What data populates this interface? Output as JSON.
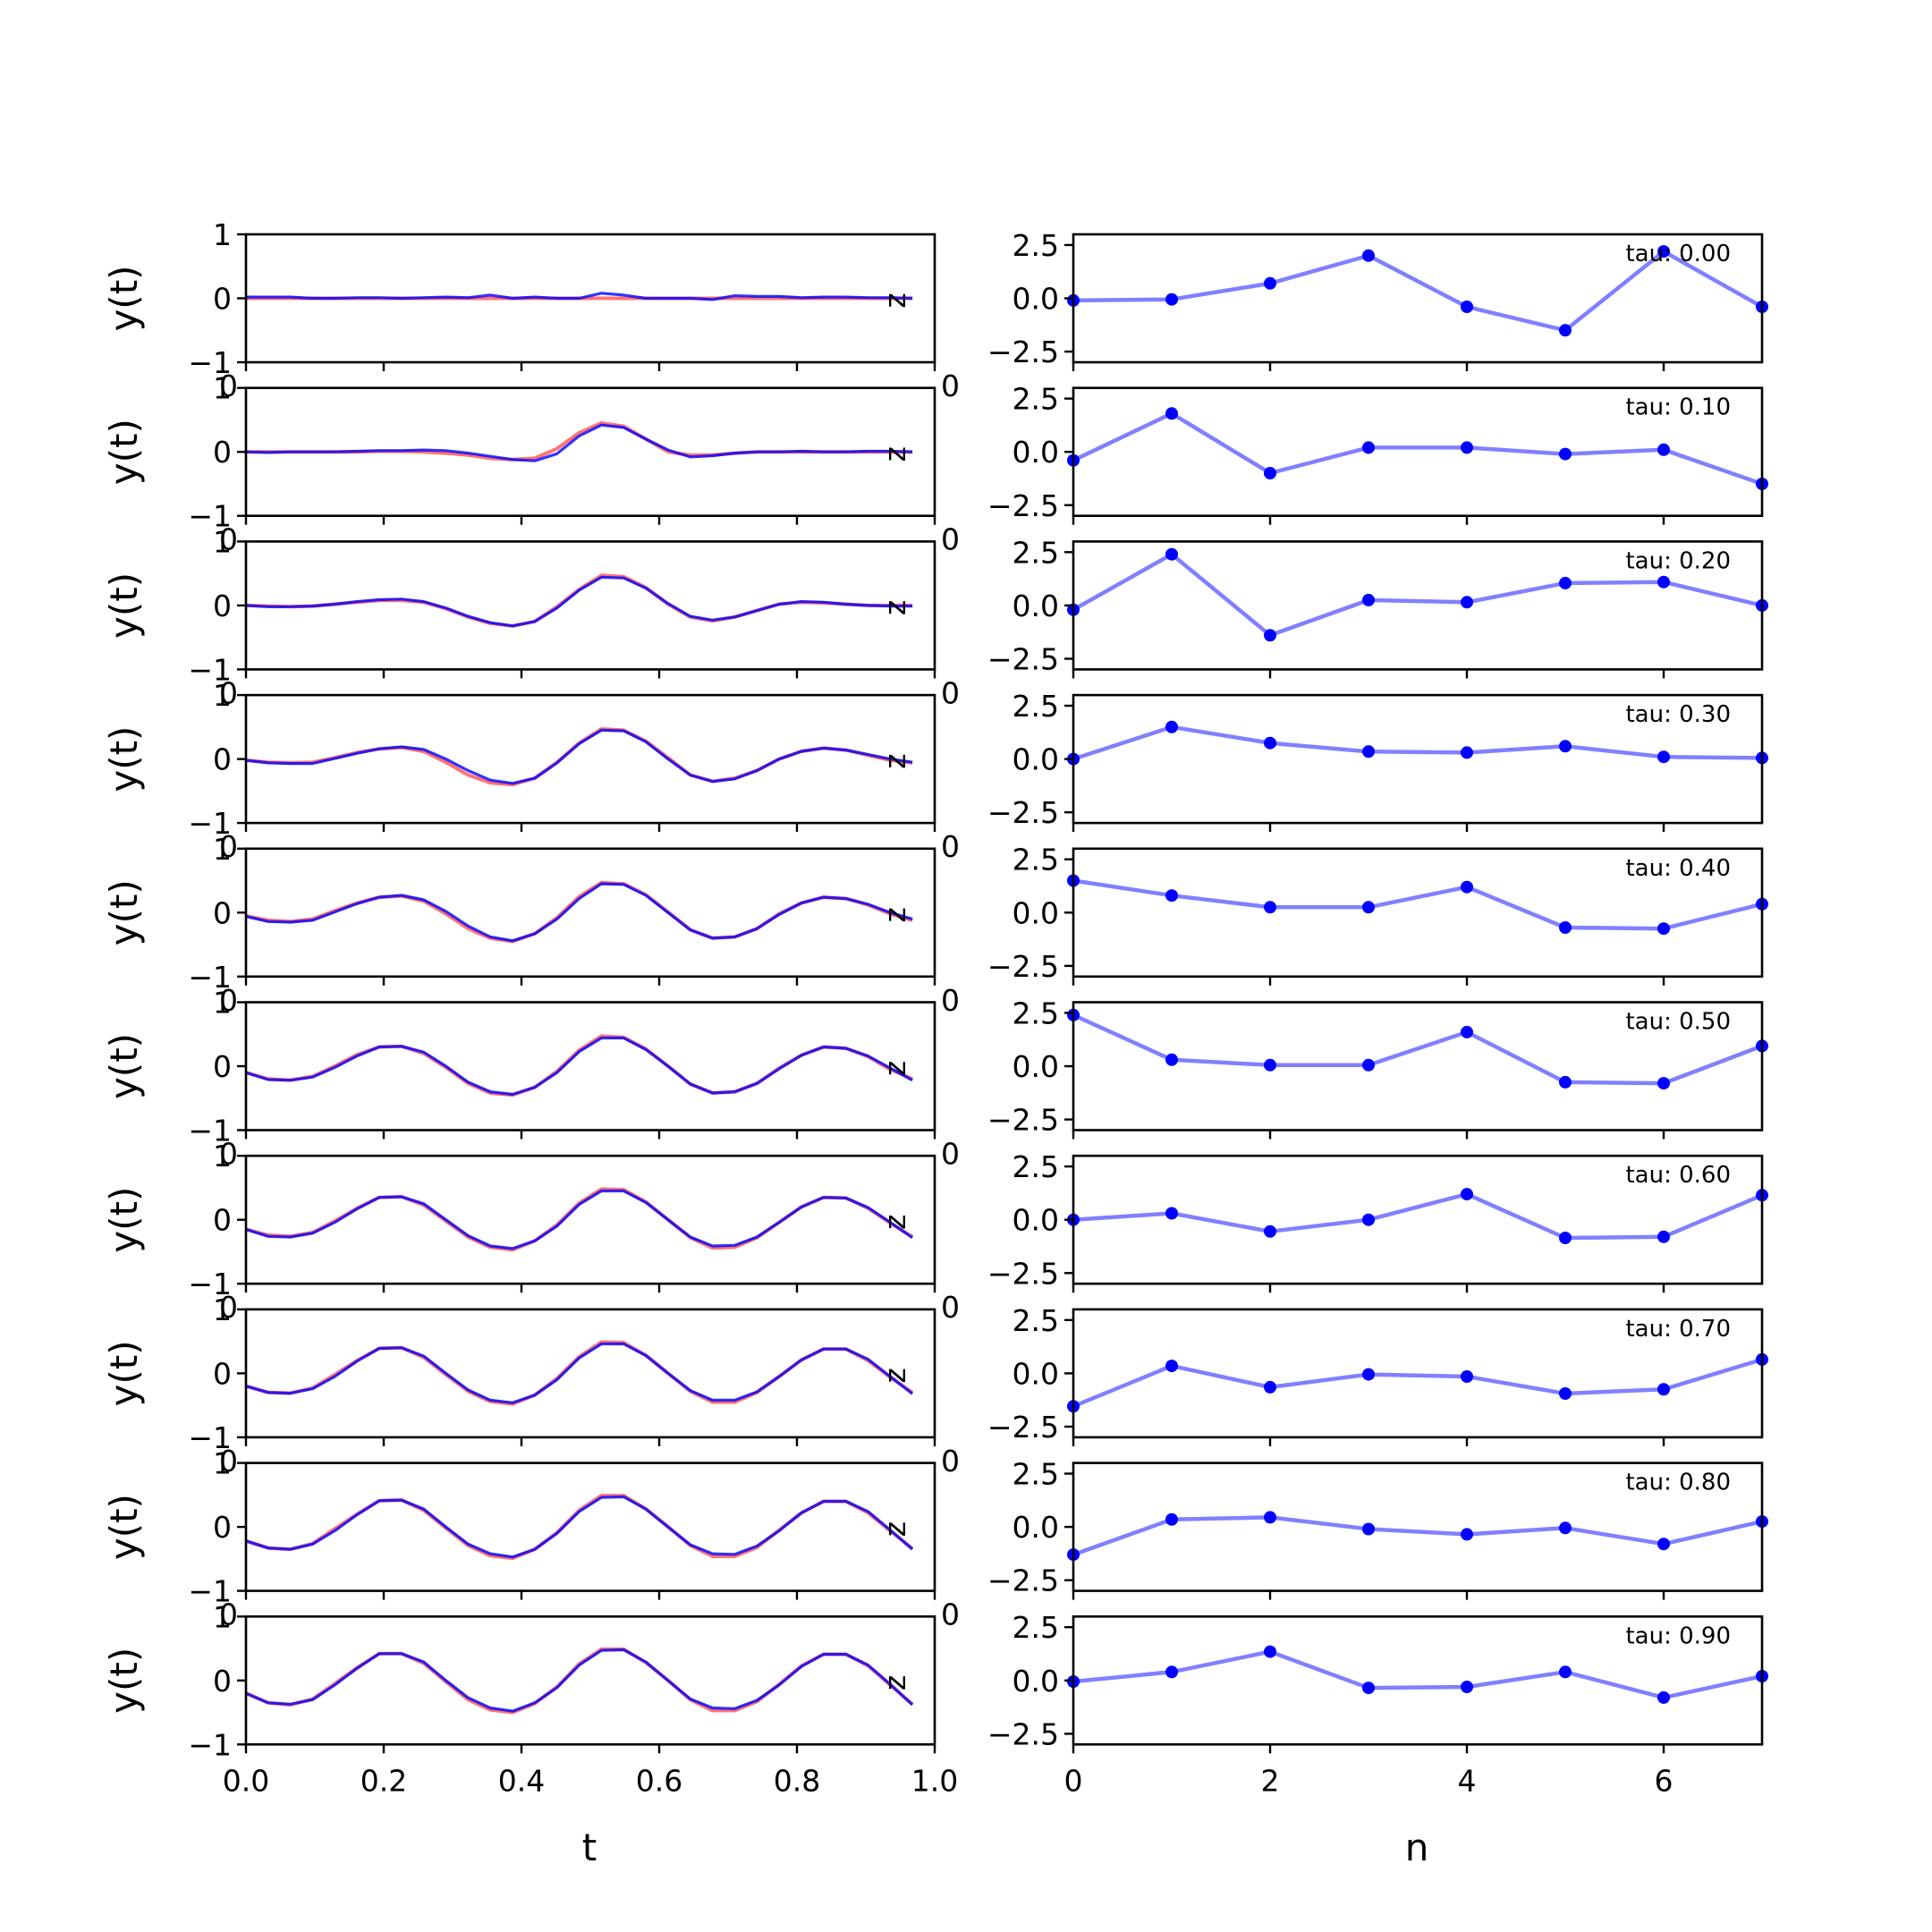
{
  "chart_data": [
    {
      "type": "line",
      "panel": "left-column",
      "xlabel": "t",
      "ylabel": "y(t)",
      "xlim": [
        0.0,
        1.0
      ],
      "ylim": [
        -1,
        1
      ],
      "xticks": [
        "0.0",
        "0.2",
        "0.4",
        "0.6",
        "0.8",
        "1.0"
      ],
      "yticks": [
        "−1",
        "0",
        "1"
      ],
      "overlap_tick_text": "0",
      "side_text": "z",
      "series_colors": {
        "reference": "#ff0000",
        "reconstruction": "#0000ff"
      },
      "t": [
        0.0,
        0.0323,
        0.0645,
        0.0968,
        0.129,
        0.1613,
        0.1935,
        0.2258,
        0.2581,
        0.2903,
        0.3226,
        0.3548,
        0.3871,
        0.4194,
        0.4516,
        0.4839,
        0.5161,
        0.5484,
        0.5806,
        0.6129,
        0.6452,
        0.6774,
        0.7097,
        0.7419,
        0.7742,
        0.8065,
        0.8387,
        0.871,
        0.9032,
        0.9355,
        0.9677
      ],
      "rows": [
        {
          "reference": [
            0.0,
            0.0,
            0.0,
            0.0,
            0.0,
            0.0,
            0.0,
            0.0,
            0.0,
            0.0,
            0.0,
            0.0,
            0.0,
            0.0,
            0.0,
            0.0,
            0.0,
            0.0,
            0.0,
            0.0,
            0.0,
            0.0,
            0.0,
            0.0,
            0.0,
            0.0,
            0.0,
            0.0,
            0.0,
            0.0,
            0.0
          ],
          "reconstruction": [
            0.02,
            0.02,
            0.02,
            0.0,
            0.0,
            0.01,
            0.01,
            0.0,
            0.01,
            0.02,
            0.01,
            0.05,
            0.0,
            0.02,
            0.0,
            0.0,
            0.08,
            0.05,
            0.0,
            0.0,
            0.0,
            -0.02,
            0.04,
            0.03,
            0.03,
            0.01,
            0.02,
            0.02,
            0.01,
            0.01,
            0.0
          ]
        },
        {
          "reference": [
            0.0,
            0.0,
            0.0,
            0.0,
            0.0,
            0.0,
            0.01,
            0.01,
            0.0,
            -0.02,
            -0.05,
            -0.1,
            -0.12,
            -0.1,
            0.05,
            0.3,
            0.45,
            0.4,
            0.2,
            0.0,
            -0.05,
            -0.05,
            -0.02,
            0.0,
            0.0,
            0.0,
            0.0,
            0.0,
            0.0,
            0.0,
            0.0
          ],
          "reconstruction": [
            0.0,
            -0.01,
            0.0,
            0.0,
            0.0,
            0.01,
            0.02,
            0.02,
            0.03,
            0.02,
            -0.02,
            -0.07,
            -0.12,
            -0.14,
            -0.03,
            0.25,
            0.42,
            0.38,
            0.2,
            0.03,
            -0.08,
            -0.06,
            -0.02,
            0.0,
            0.0,
            0.01,
            0.0,
            0.0,
            0.01,
            0.01,
            0.0
          ]
        },
        {
          "reference": [
            0.0,
            -0.01,
            -0.02,
            -0.01,
            0.02,
            0.05,
            0.08,
            0.08,
            0.05,
            -0.05,
            -0.18,
            -0.28,
            -0.32,
            -0.25,
            -0.02,
            0.25,
            0.47,
            0.45,
            0.28,
            0.02,
            -0.18,
            -0.24,
            -0.18,
            -0.08,
            0.02,
            0.05,
            0.04,
            0.02,
            0.0,
            0.0,
            0.0
          ],
          "reconstruction": [
            0.0,
            -0.02,
            -0.02,
            -0.01,
            0.02,
            0.06,
            0.09,
            0.1,
            0.06,
            -0.04,
            -0.17,
            -0.27,
            -0.32,
            -0.25,
            -0.04,
            0.24,
            0.44,
            0.43,
            0.27,
            0.03,
            -0.17,
            -0.23,
            -0.18,
            -0.08,
            0.02,
            0.06,
            0.05,
            0.02,
            0.0,
            -0.01,
            -0.01
          ]
        },
        {
          "reference": [
            -0.02,
            -0.05,
            -0.06,
            -0.05,
            0.02,
            0.1,
            0.16,
            0.18,
            0.12,
            -0.05,
            -0.25,
            -0.37,
            -0.4,
            -0.3,
            -0.05,
            0.25,
            0.47,
            0.45,
            0.28,
            0.02,
            -0.25,
            -0.35,
            -0.3,
            -0.18,
            0.0,
            0.12,
            0.17,
            0.14,
            0.06,
            -0.02,
            -0.06
          ],
          "reconstruction": [
            -0.02,
            -0.06,
            -0.07,
            -0.07,
            0.01,
            0.09,
            0.16,
            0.19,
            0.15,
            0.0,
            -0.18,
            -0.33,
            -0.38,
            -0.3,
            -0.06,
            0.24,
            0.45,
            0.44,
            0.27,
            0.0,
            -0.25,
            -0.35,
            -0.31,
            -0.18,
            0.0,
            0.12,
            0.17,
            0.14,
            0.07,
            0.0,
            -0.05
          ]
        },
        {
          "reference": [
            -0.05,
            -0.12,
            -0.14,
            -0.1,
            0.03,
            0.15,
            0.24,
            0.26,
            0.18,
            -0.02,
            -0.25,
            -0.4,
            -0.45,
            -0.33,
            -0.08,
            0.25,
            0.47,
            0.45,
            0.28,
            0.01,
            -0.27,
            -0.4,
            -0.38,
            -0.25,
            -0.02,
            0.15,
            0.24,
            0.22,
            0.12,
            -0.02,
            -0.12
          ],
          "reconstruction": [
            -0.06,
            -0.14,
            -0.15,
            -0.12,
            0.01,
            0.14,
            0.24,
            0.27,
            0.2,
            0.02,
            -0.21,
            -0.38,
            -0.44,
            -0.33,
            -0.1,
            0.22,
            0.45,
            0.44,
            0.27,
            0.0,
            -0.27,
            -0.4,
            -0.38,
            -0.25,
            -0.03,
            0.15,
            0.24,
            0.22,
            0.13,
            0.0,
            -0.1
          ]
        },
        {
          "reference": [
            -0.1,
            -0.2,
            -0.22,
            -0.16,
            0.0,
            0.18,
            0.3,
            0.31,
            0.2,
            -0.02,
            -0.27,
            -0.42,
            -0.45,
            -0.33,
            -0.08,
            0.25,
            0.47,
            0.45,
            0.27,
            0.0,
            -0.28,
            -0.42,
            -0.4,
            -0.27,
            -0.03,
            0.17,
            0.3,
            0.28,
            0.15,
            -0.05,
            -0.2
          ],
          "reconstruction": [
            -0.1,
            -0.21,
            -0.22,
            -0.17,
            -0.02,
            0.16,
            0.3,
            0.31,
            0.22,
            0.0,
            -0.25,
            -0.4,
            -0.44,
            -0.33,
            -0.1,
            0.23,
            0.44,
            0.44,
            0.26,
            0.0,
            -0.28,
            -0.42,
            -0.4,
            -0.27,
            -0.04,
            0.17,
            0.3,
            0.28,
            0.16,
            -0.03,
            -0.22
          ]
        },
        {
          "reference": [
            -0.15,
            -0.24,
            -0.26,
            -0.2,
            -0.02,
            0.18,
            0.35,
            0.36,
            0.23,
            -0.02,
            -0.27,
            -0.43,
            -0.47,
            -0.33,
            -0.08,
            0.26,
            0.48,
            0.47,
            0.28,
            0.0,
            -0.28,
            -0.44,
            -0.43,
            -0.28,
            -0.04,
            0.2,
            0.35,
            0.34,
            0.18,
            -0.05,
            -0.27
          ],
          "reconstruction": [
            -0.15,
            -0.26,
            -0.27,
            -0.21,
            -0.04,
            0.17,
            0.35,
            0.36,
            0.25,
            0.0,
            -0.25,
            -0.41,
            -0.45,
            -0.33,
            -0.1,
            0.24,
            0.45,
            0.45,
            0.27,
            0.0,
            -0.27,
            -0.41,
            -0.4,
            -0.27,
            -0.04,
            0.2,
            0.35,
            0.34,
            0.19,
            -0.04,
            -0.28
          ]
        },
        {
          "reference": [
            -0.2,
            -0.3,
            -0.31,
            -0.23,
            -0.02,
            0.2,
            0.39,
            0.4,
            0.25,
            -0.02,
            -0.28,
            -0.44,
            -0.48,
            -0.34,
            -0.08,
            0.26,
            0.49,
            0.48,
            0.28,
            0.0,
            -0.28,
            -0.45,
            -0.45,
            -0.3,
            -0.05,
            0.21,
            0.38,
            0.38,
            0.2,
            -0.06,
            -0.3
          ],
          "reconstruction": [
            -0.2,
            -0.3,
            -0.31,
            -0.24,
            -0.05,
            0.19,
            0.39,
            0.4,
            0.27,
            0.0,
            -0.26,
            -0.42,
            -0.46,
            -0.34,
            -0.1,
            0.24,
            0.46,
            0.46,
            0.28,
            0.0,
            -0.27,
            -0.42,
            -0.42,
            -0.29,
            -0.05,
            0.21,
            0.38,
            0.38,
            0.22,
            -0.05,
            -0.32
          ]
        },
        {
          "reference": [
            -0.22,
            -0.33,
            -0.35,
            -0.26,
            -0.03,
            0.2,
            0.41,
            0.42,
            0.26,
            -0.02,
            -0.29,
            -0.45,
            -0.49,
            -0.35,
            -0.09,
            0.26,
            0.49,
            0.49,
            0.28,
            0.0,
            -0.29,
            -0.46,
            -0.46,
            -0.32,
            -0.05,
            0.22,
            0.4,
            0.4,
            0.22,
            -0.06,
            -0.34
          ],
          "reconstruction": [
            -0.22,
            -0.33,
            -0.35,
            -0.27,
            -0.06,
            0.19,
            0.41,
            0.42,
            0.28,
            0.0,
            -0.27,
            -0.42,
            -0.47,
            -0.35,
            -0.1,
            0.24,
            0.46,
            0.47,
            0.28,
            0.0,
            -0.28,
            -0.42,
            -0.43,
            -0.3,
            -0.06,
            0.22,
            0.4,
            0.4,
            0.24,
            -0.05,
            -0.35
          ]
        },
        {
          "reference": [
            -0.2,
            -0.35,
            -0.38,
            -0.29,
            -0.05,
            0.2,
            0.42,
            0.42,
            0.27,
            -0.02,
            -0.3,
            -0.46,
            -0.5,
            -0.36,
            -0.1,
            0.26,
            0.49,
            0.49,
            0.28,
            0.0,
            -0.3,
            -0.47,
            -0.47,
            -0.33,
            -0.06,
            0.23,
            0.41,
            0.41,
            0.23,
            -0.07,
            -0.37
          ],
          "reconstruction": [
            -0.2,
            -0.35,
            -0.37,
            -0.3,
            -0.07,
            0.19,
            0.42,
            0.42,
            0.29,
            0.0,
            -0.27,
            -0.43,
            -0.48,
            -0.35,
            -0.11,
            0.24,
            0.47,
            0.48,
            0.29,
            0.0,
            -0.29,
            -0.43,
            -0.44,
            -0.31,
            -0.07,
            0.22,
            0.41,
            0.41,
            0.24,
            -0.06,
            -0.38
          ]
        }
      ]
    },
    {
      "type": "line",
      "panel": "right-column",
      "xlabel": "n",
      "ylabel": "",
      "xlim": [
        0,
        7
      ],
      "ylim": [
        -3,
        3
      ],
      "xticks": [
        "0",
        "2",
        "4",
        "6"
      ],
      "yticks": [
        "−2.5",
        "0.0",
        "2.5"
      ],
      "marker_color": "#0000ff",
      "line_color": "#8080ff",
      "n": [
        0,
        1,
        2,
        3,
        4,
        5,
        6,
        7
      ],
      "rows": [
        {
          "label": "tau: 0.00",
          "values": [
            -0.1,
            -0.05,
            0.7,
            2.0,
            -0.4,
            -1.5,
            2.2,
            -0.4
          ]
        },
        {
          "label": "tau: 0.10",
          "values": [
            -0.4,
            1.8,
            -1.0,
            0.2,
            0.2,
            -0.1,
            0.1,
            -1.5
          ]
        },
        {
          "label": "tau: 0.20",
          "values": [
            -0.2,
            2.4,
            -1.4,
            0.25,
            0.15,
            1.05,
            1.1,
            0.0
          ]
        },
        {
          "label": "tau: 0.30",
          "values": [
            0.0,
            1.5,
            0.75,
            0.35,
            0.3,
            0.6,
            0.1,
            0.05
          ]
        },
        {
          "label": "tau: 0.40",
          "values": [
            1.5,
            0.8,
            0.25,
            0.25,
            1.2,
            -0.7,
            -0.75,
            0.4
          ]
        },
        {
          "label": "tau: 0.50",
          "values": [
            2.4,
            0.3,
            0.05,
            0.05,
            1.6,
            -0.75,
            -0.8,
            0.95
          ]
        },
        {
          "label": "tau: 0.60",
          "values": [
            0.0,
            0.3,
            -0.55,
            0.0,
            1.2,
            -0.85,
            -0.8,
            1.15
          ]
        },
        {
          "label": "tau: 0.70",
          "values": [
            -1.55,
            0.35,
            -0.65,
            -0.05,
            -0.15,
            -0.95,
            -0.75,
            0.65
          ]
        },
        {
          "label": "tau: 0.80",
          "values": [
            -1.3,
            0.35,
            0.45,
            -0.1,
            -0.35,
            -0.05,
            -0.8,
            0.25
          ]
        },
        {
          "label": "tau: 0.90",
          "values": [
            -0.05,
            0.4,
            1.35,
            -0.35,
            -0.3,
            0.4,
            -0.8,
            0.2
          ]
        }
      ]
    }
  ]
}
